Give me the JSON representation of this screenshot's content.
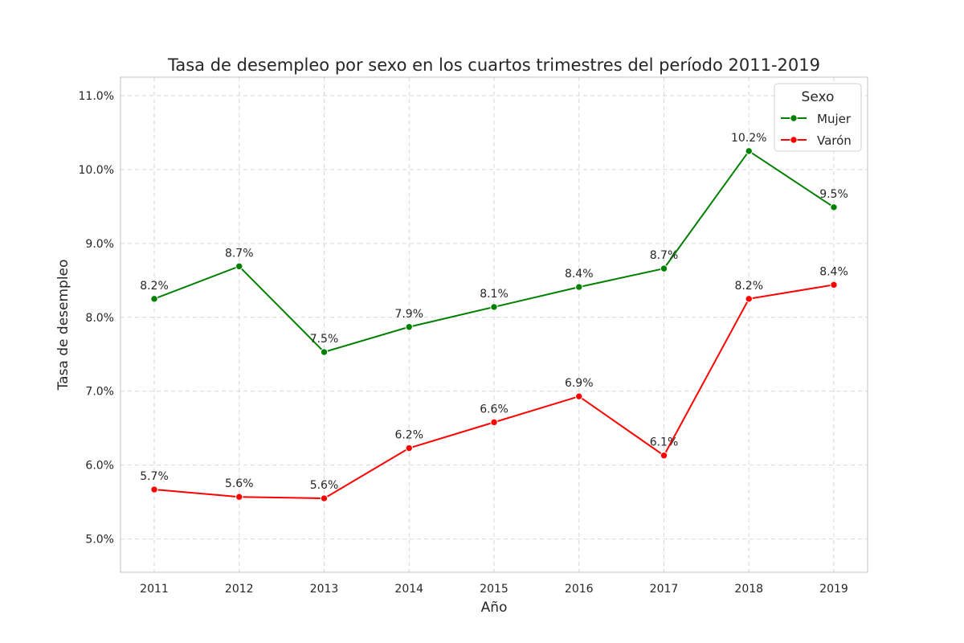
{
  "chart_data": {
    "type": "line",
    "title": "Tasa de desempleo por sexo en los cuartos trimestres del período 2011-2019",
    "xlabel": "Año",
    "ylabel": "Tasa de desempleo",
    "x": [
      2011,
      2012,
      2013,
      2014,
      2015,
      2016,
      2017,
      2018,
      2019
    ],
    "x_tick_labels": [
      "2011",
      "2012",
      "2013",
      "2014",
      "2015",
      "2016",
      "2017",
      "2018",
      "2019"
    ],
    "ylim": [
      4.55,
      11.25
    ],
    "y_ticks": [
      5.0,
      6.0,
      7.0,
      8.0,
      9.0,
      10.0,
      11.0
    ],
    "y_tick_labels": [
      "5.0%",
      "6.0%",
      "7.0%",
      "8.0%",
      "9.0%",
      "10.0%",
      "11.0%"
    ],
    "grid": true,
    "legend": {
      "title": "Sexo",
      "placement": "top-right"
    },
    "series": [
      {
        "name": "Mujer",
        "color": "#008000",
        "values": [
          8.25,
          8.69,
          7.53,
          7.87,
          8.14,
          8.41,
          8.66,
          10.25,
          9.49
        ],
        "labels": [
          "8.2%",
          "8.7%",
          "7.5%",
          "7.9%",
          "8.1%",
          "8.4%",
          "8.7%",
          "10.2%",
          "9.5%"
        ]
      },
      {
        "name": "Varón",
        "color": "#ff0000",
        "values": [
          5.67,
          5.57,
          5.55,
          6.23,
          6.58,
          6.93,
          6.13,
          8.25,
          8.44
        ],
        "labels": [
          "5.7%",
          "5.6%",
          "5.6%",
          "6.2%",
          "6.6%",
          "6.9%",
          "6.1%",
          "8.2%",
          "8.4%"
        ]
      }
    ]
  }
}
